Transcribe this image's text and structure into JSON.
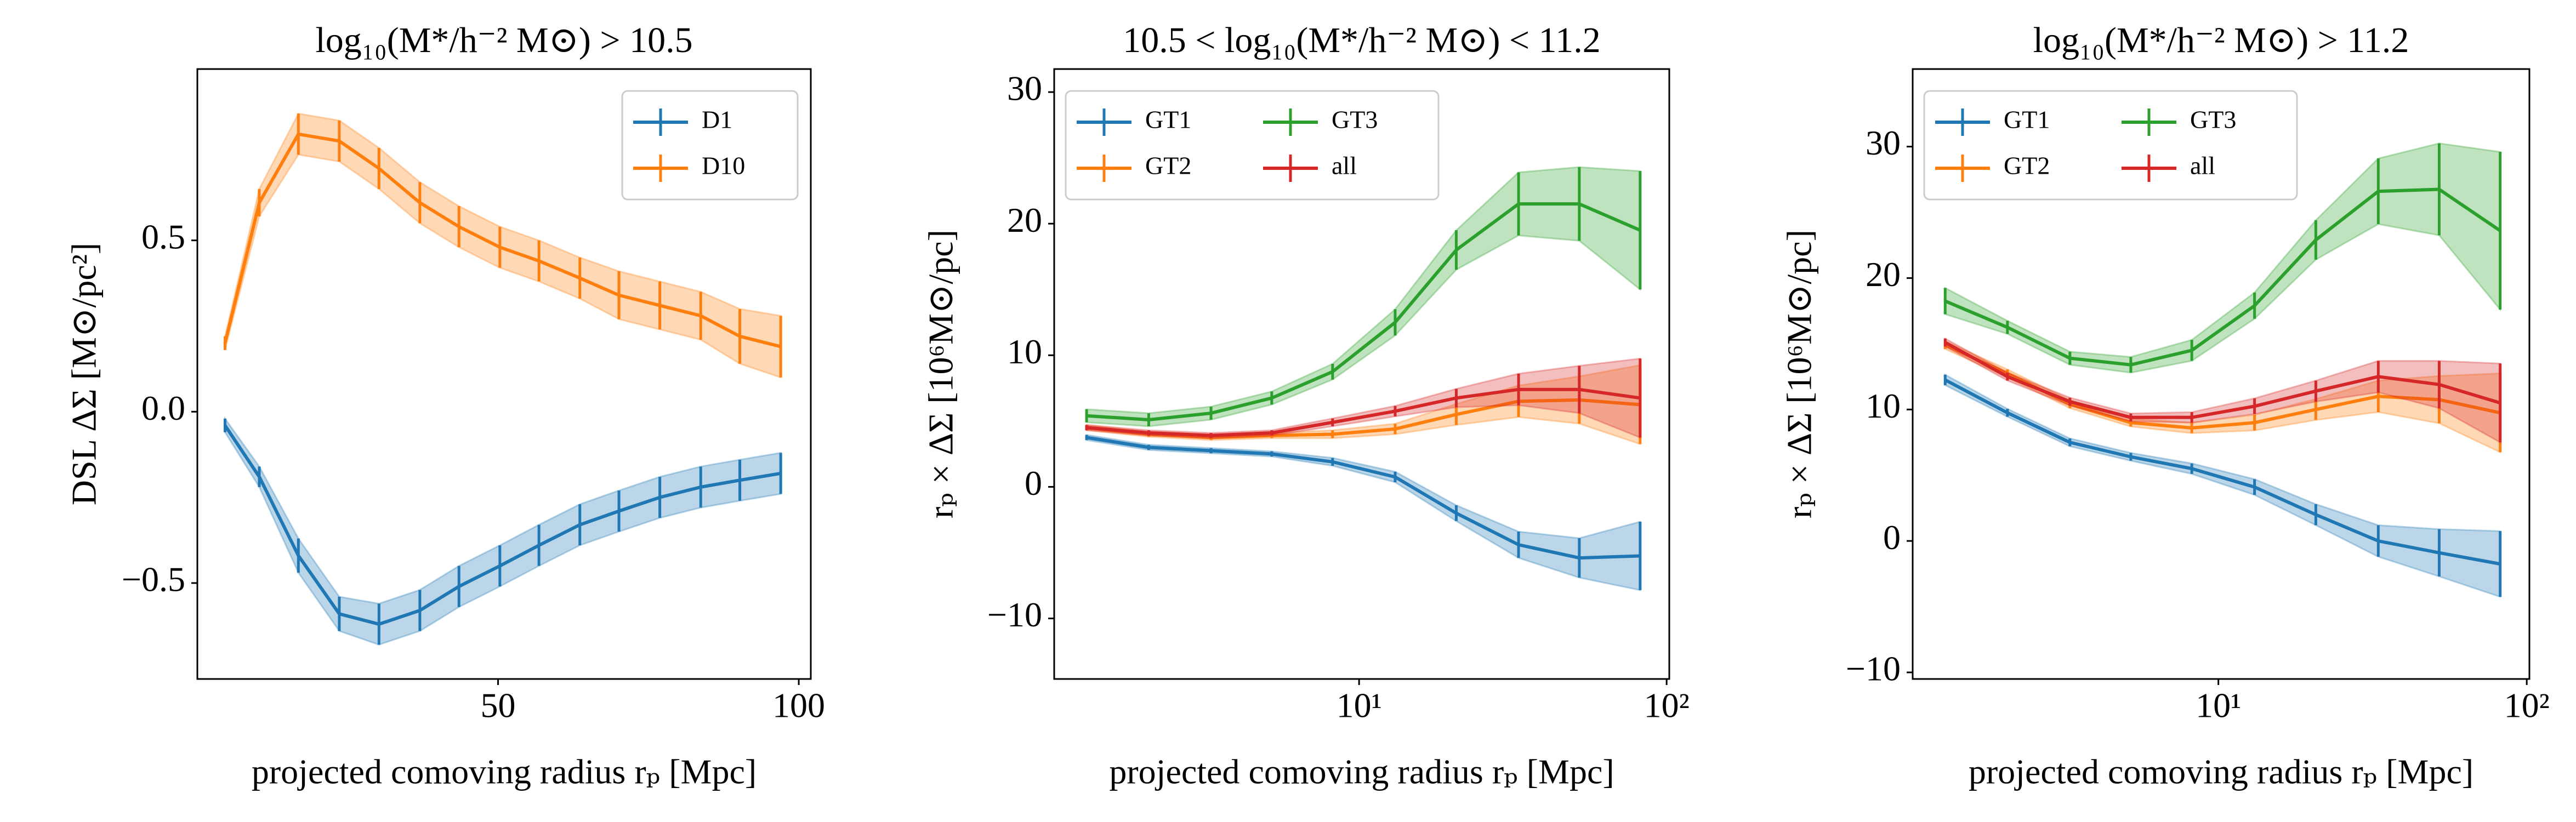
{
  "chart_data": [
    {
      "type": "line",
      "title": "log₁₀(M*/h⁻² M⊙) > 10.5",
      "xlabel": "projected comoving radius rₚ [Mpc]",
      "ylabel": "DSL ΔΣ [M⊙/pc²]",
      "xscale": "linear",
      "xlim": [
        0,
        102
      ],
      "ylim": [
        -0.78,
        1.0
      ],
      "xticks": [
        50,
        100
      ],
      "yticks": [
        {
          "value": -0.5,
          "label": "−0.5"
        },
        {
          "value": 0,
          "label": "0.0"
        },
        {
          "value": 0.5,
          "label": "0.5"
        }
      ],
      "legend": "upper right",
      "legend_columns": 1,
      "x": [
        4.6,
        10.3,
        16.8,
        23.6,
        30.2,
        37,
        43.5,
        50.3,
        56.8,
        63.6,
        70.1,
        76.9,
        83.7,
        90.2,
        97
      ],
      "series": [
        {
          "name": "D1",
          "color": "#1f77b4",
          "values": [
            -0.04,
            -0.19,
            -0.42,
            -0.59,
            -0.62,
            -0.58,
            -0.51,
            -0.45,
            -0.39,
            -0.33,
            -0.29,
            -0.25,
            -0.22,
            -0.2,
            -0.18
          ],
          "errors": [
            0.02,
            0.03,
            0.05,
            0.05,
            0.06,
            0.06,
            0.06,
            0.06,
            0.06,
            0.06,
            0.06,
            0.06,
            0.06,
            0.06,
            0.06
          ]
        },
        {
          "name": "D10",
          "color": "#ff7f0e",
          "values": [
            0.2,
            0.61,
            0.81,
            0.79,
            0.71,
            0.61,
            0.54,
            0.48,
            0.44,
            0.39,
            0.34,
            0.31,
            0.28,
            0.22,
            0.19
          ],
          "errors": [
            0.02,
            0.04,
            0.06,
            0.06,
            0.06,
            0.06,
            0.06,
            0.06,
            0.06,
            0.06,
            0.07,
            0.07,
            0.07,
            0.08,
            0.09
          ]
        }
      ]
    },
    {
      "type": "line",
      "title": "10.5 < log₁₀(M*/h⁻² M⊙) < 11.2",
      "xlabel": "projected comoving radius rₚ [Mpc]",
      "ylabel": "rₚ × ΔΣ [10⁶M⊙/pc]",
      "xscale": "log",
      "xlim": [
        1.02,
        102
      ],
      "ylim": [
        -14.6,
        31.75
      ],
      "xticks": [
        {
          "value": 10,
          "label": "10¹"
        },
        {
          "value": 100,
          "label": "10²"
        }
      ],
      "yticks": [
        {
          "value": -10,
          "label": "−10"
        },
        0,
        10,
        20,
        30
      ],
      "legend": "upper left",
      "legend_columns": 2,
      "x": [
        1.3,
        2.07,
        3.3,
        5.2,
        8.2,
        13.1,
        20.7,
        33,
        52,
        82
      ],
      "series": [
        {
          "name": "GT1",
          "color": "#1f77b4",
          "values": [
            3.75,
            3.0,
            2.75,
            2.5,
            1.9,
            0.75,
            -2.0,
            -4.4,
            -5.4,
            -5.25
          ],
          "errors": [
            0.2,
            0.2,
            0.2,
            0.2,
            0.3,
            0.4,
            0.6,
            1,
            1.5,
            2.6
          ]
        },
        {
          "name": "GT2",
          "color": "#ff7f0e",
          "values": [
            4.5,
            4.0,
            3.75,
            3.9,
            4.0,
            4.4,
            5.5,
            6.5,
            6.6,
            6.25
          ],
          "errors": [
            0.2,
            0.2,
            0.2,
            0.2,
            0.3,
            0.4,
            0.8,
            1.2,
            1.8,
            3
          ]
        },
        {
          "name": "GT3",
          "color": "#2ca02c",
          "values": [
            5.4,
            5.1,
            5.6,
            6.75,
            8.75,
            12.5,
            18,
            21.5,
            21.5,
            19.5
          ],
          "errors": [
            0.5,
            0.5,
            0.5,
            0.5,
            0.6,
            1,
            1.5,
            2.4,
            2.8,
            4.5
          ]
        },
        {
          "name": "all",
          "color": "#d62728",
          "values": [
            4.5,
            4.1,
            3.9,
            4.1,
            4.9,
            5.75,
            6.75,
            7.4,
            7.4,
            6.75
          ],
          "errors": [
            0.2,
            0.2,
            0.2,
            0.2,
            0.3,
            0.4,
            0.7,
            1.2,
            1.8,
            3
          ]
        }
      ]
    },
    {
      "type": "line",
      "title": "log₁₀(M*/h⁻² M⊙) > 11.2",
      "xlabel": "projected comoving radius rₚ [Mpc]",
      "ylabel": "rₚ × ΔΣ [10⁶M⊙/pc]",
      "xscale": "log",
      "xlim": [
        1.02,
        102
      ],
      "ylim": [
        -10.5,
        35.9
      ],
      "xticks": [
        {
          "value": 10,
          "label": "10¹"
        },
        {
          "value": 100,
          "label": "10²"
        }
      ],
      "yticks": [
        {
          "value": -10,
          "label": "−10"
        },
        0,
        10,
        20,
        30
      ],
      "legend": "upper left",
      "legend_columns": 2,
      "x": [
        1.3,
        2.07,
        3.3,
        5.2,
        8.2,
        13.1,
        20.7,
        33,
        52,
        82
      ],
      "series": [
        {
          "name": "GT1",
          "color": "#1f77b4",
          "values": [
            12.25,
            9.75,
            7.5,
            6.4,
            5.5,
            4.1,
            2.0,
            0,
            -0.9,
            -1.75
          ],
          "errors": [
            0.4,
            0.3,
            0.3,
            0.3,
            0.4,
            0.6,
            0.8,
            1.2,
            1.8,
            2.5
          ]
        },
        {
          "name": "GT2",
          "color": "#ff7f0e",
          "values": [
            14.9,
            12.75,
            10.4,
            9,
            8.6,
            9,
            10,
            11,
            10.75,
            9.75
          ],
          "errors": [
            0.3,
            0.3,
            0.3,
            0.3,
            0.4,
            0.6,
            0.8,
            1.2,
            1.8,
            3
          ]
        },
        {
          "name": "GT3",
          "color": "#2ca02c",
          "values": [
            18.25,
            16.25,
            13.9,
            13.4,
            14.5,
            17.9,
            22.9,
            26.6,
            26.75,
            23.6
          ],
          "errors": [
            1,
            0.5,
            0.5,
            0.6,
            0.8,
            1,
            1.5,
            2.5,
            3.5,
            6
          ]
        },
        {
          "name": "all",
          "color": "#d62728",
          "values": [
            15.1,
            12.5,
            10.6,
            9.4,
            9.4,
            10.25,
            11.4,
            12.5,
            11.9,
            10.5
          ],
          "errors": [
            0.3,
            0.3,
            0.3,
            0.3,
            0.4,
            0.6,
            0.8,
            1.2,
            1.8,
            3
          ]
        }
      ]
    }
  ]
}
